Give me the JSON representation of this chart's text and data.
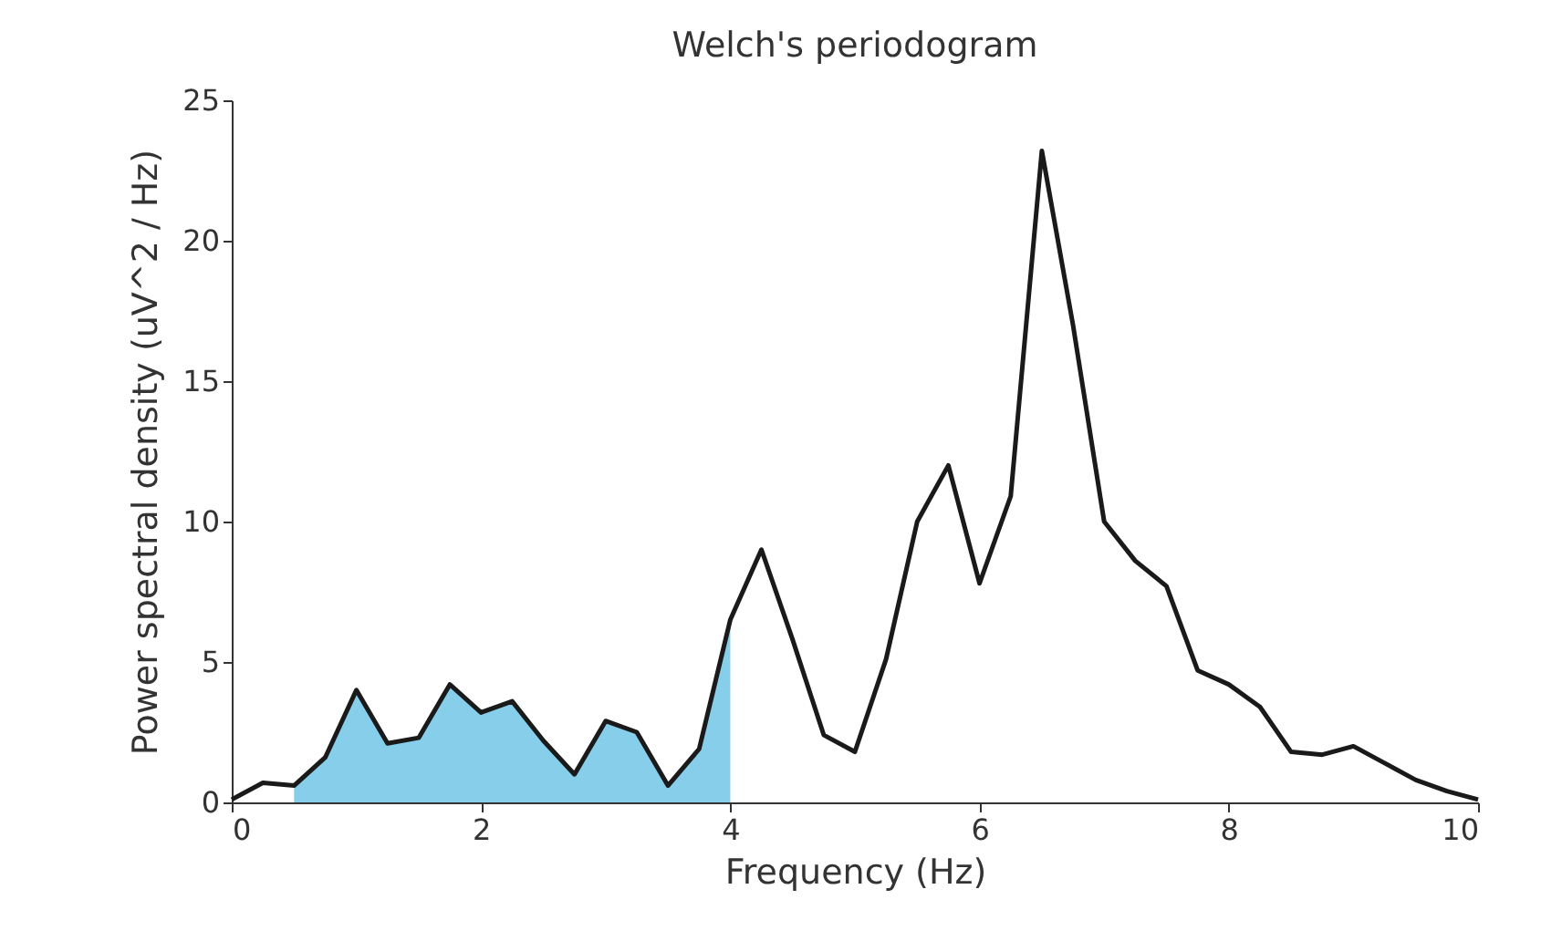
{
  "chart_data": {
    "type": "line",
    "title": "Welch's periodogram",
    "xlabel": "Frequency (Hz)",
    "ylabel": "Power spectral density (uV^2 / Hz)",
    "series": [
      {
        "color": "#1a1a1a",
        "x": [
          0,
          0.25,
          0.5,
          0.75,
          1.0,
          1.25,
          1.5,
          1.75,
          2.0,
          2.25,
          2.5,
          2.75,
          3.0,
          3.25,
          3.5,
          3.75,
          4.0,
          4.25,
          4.5,
          4.75,
          5.0,
          5.25,
          5.5,
          5.75,
          6.0,
          6.25,
          6.5,
          6.75,
          7.0,
          7.25,
          7.5,
          7.75,
          8.0,
          8.25,
          8.5,
          8.75,
          9.0,
          9.25,
          9.5,
          9.75,
          10
        ],
        "values": [
          0.1,
          0.7,
          0.6,
          1.6,
          4.0,
          2.1,
          2.3,
          4.2,
          3.2,
          3.6,
          2.2,
          1.0,
          2.9,
          2.5,
          0.6,
          1.9,
          6.5,
          9.0,
          5.8,
          2.4,
          1.8,
          5.1,
          10.0,
          12.0,
          7.8,
          10.9,
          23.2,
          17.0,
          10.0,
          8.6,
          7.7,
          4.7,
          4.2,
          3.4,
          1.8,
          1.7,
          2.0,
          1.4,
          0.8,
          0.4,
          0.1
        ]
      },
      {
        "type": "area",
        "color": "#87ceeb",
        "x": [
          0.5,
          0.75,
          1.0,
          1.25,
          1.5,
          1.75,
          2.0,
          2.25,
          2.5,
          2.75,
          3.0,
          3.25,
          3.5,
          3.75,
          4.0
        ],
        "values": [
          0.6,
          1.6,
          4.0,
          2.1,
          2.3,
          4.2,
          3.2,
          3.6,
          2.2,
          1.0,
          2.9,
          2.5,
          0.6,
          1.9,
          6.5
        ]
      }
    ],
    "xlim": [
      0,
      10
    ],
    "xticks": [
      0,
      2,
      4,
      6,
      8,
      10
    ],
    "ylim": [
      0,
      25
    ],
    "yticks": [
      0,
      5,
      10,
      15,
      20,
      25
    ],
    "grid": false,
    "marker": "none",
    "line_style": "solid"
  }
}
